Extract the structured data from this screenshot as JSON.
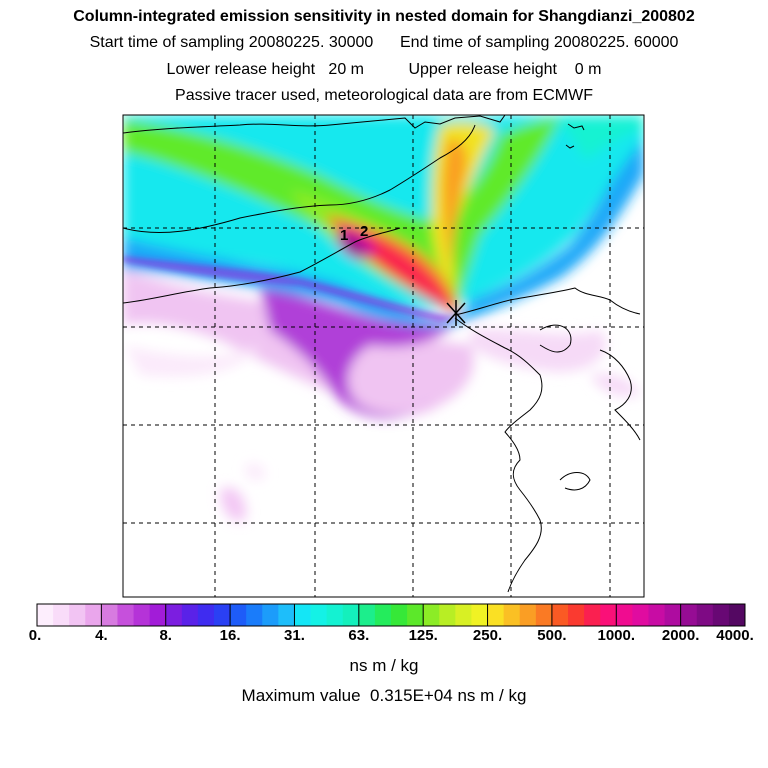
{
  "header": {
    "title": "Column-integrated emission sensitivity in nested domain for Shangdianzi_200802",
    "sampling_line": "Start time of sampling 20080225. 30000      End time of sampling 20080225. 60000",
    "release_line": "Lower release height   20 m          Upper release height    0 m",
    "tracer_line": "Passive tracer used, meteorological data are from ECMWF"
  },
  "map": {
    "release_labels": [
      "1",
      "2"
    ],
    "receptor_marker": "receptor-star-icon"
  },
  "colorbar": {
    "tick_labels": [
      "0.",
      "4.",
      "8.",
      "16.",
      "31.",
      "63.",
      "125.",
      "250.",
      "500.",
      "1000.",
      "2000.",
      "4000."
    ],
    "units": "ns m / kg",
    "max_value_text": "Maximum value  0.315E+04 ns m / kg",
    "colors": [
      "#fdeefd",
      "#f9dcf9",
      "#f2c4f3",
      "#eaa6ec",
      "#d77be0",
      "#c650dc",
      "#b533d8",
      "#a21cd8",
      "#7c1ee0",
      "#5a22e8",
      "#3f2cf0",
      "#2a40f4",
      "#1e5cf8",
      "#1a7cfa",
      "#1c9cfa",
      "#1ebefa",
      "#14e6f6",
      "#14f2e6",
      "#14f2d2",
      "#14f0bc",
      "#1cee8c",
      "#24ec5c",
      "#36e838",
      "#5ce82a",
      "#8cec26",
      "#b8ee24",
      "#d8f024",
      "#f0f224",
      "#fae024",
      "#fac024",
      "#fa9e24",
      "#fa7a24",
      "#fa5a24",
      "#fa3a30",
      "#fa2050",
      "#fa1078",
      "#f00c90",
      "#e00ca0",
      "#c80ca4",
      "#ae0ca0",
      "#960c94",
      "#7e0a84",
      "#680874",
      "#540862"
    ]
  }
}
